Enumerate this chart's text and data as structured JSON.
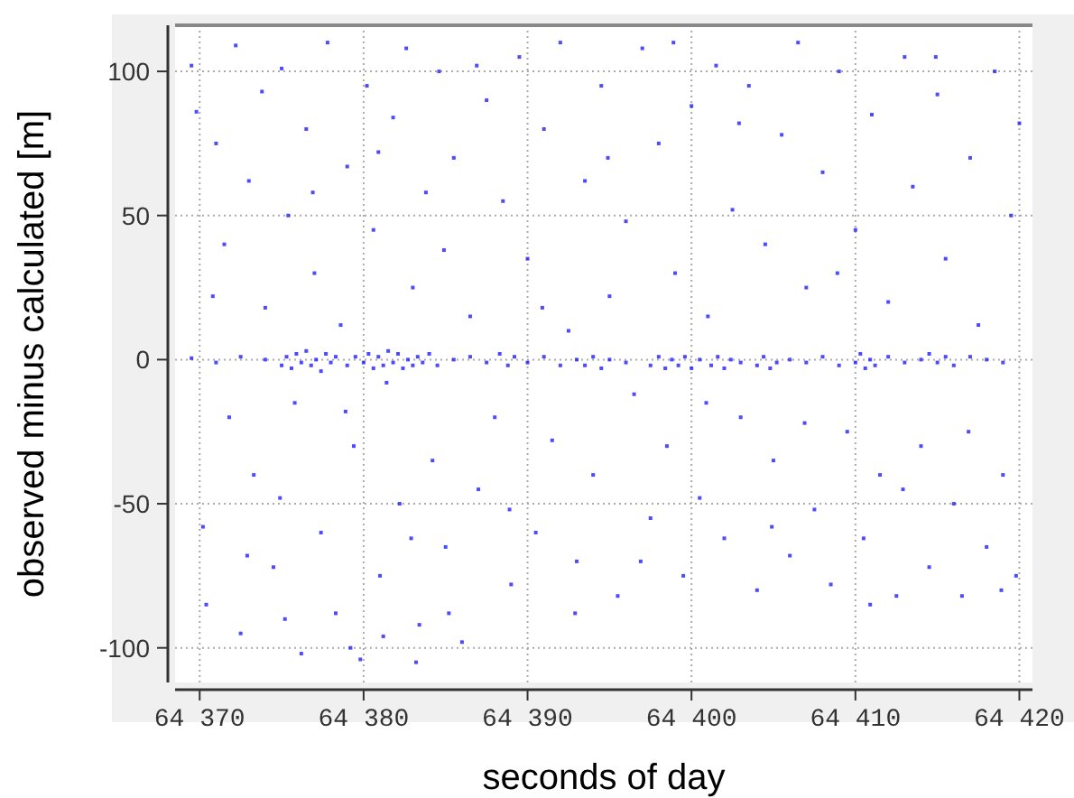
{
  "chart_data": {
    "type": "scatter",
    "xlabel": "seconds of day",
    "ylabel": "observed minus calculated [m]",
    "xlim": [
      64368.5,
      64420.8
    ],
    "ylim": [
      -112,
      116
    ],
    "xticks": [
      {
        "value": 64370,
        "label": "64 370"
      },
      {
        "value": 64380,
        "label": "64 380"
      },
      {
        "value": 64390,
        "label": "64 390"
      },
      {
        "value": 64400,
        "label": "64 400"
      },
      {
        "value": 64410,
        "label": "64 410"
      },
      {
        "value": 64420,
        "label": "64 420"
      }
    ],
    "yticks": [
      -100,
      -50,
      0,
      50,
      100
    ],
    "grid": true,
    "marker": "square",
    "series": [
      {
        "color": "#0000ff",
        "x": [
          64369.5,
          64369.8,
          64370.2,
          64370.4,
          64371,
          64371.5,
          64371.8,
          64372.2,
          64372.5,
          64373,
          64373.3,
          64373.8,
          64374,
          64374.5,
          64375,
          64375.4,
          64375.8,
          64376.2,
          64376.5,
          64377,
          64377.4,
          64377.8,
          64378.3,
          64378.6,
          64379,
          64379.4,
          64379.8,
          64380.2,
          64380.6,
          64381,
          64381.4,
          64381.8,
          64382.2,
          64382.6,
          64383,
          64383.4,
          64383.8,
          64384.2,
          64384.6,
          64385,
          64385.5,
          64386,
          64386.5,
          64387,
          64387.5,
          64388,
          64388.5,
          64389,
          64389.5,
          64390,
          64390.5,
          64391,
          64391.5,
          64392,
          64392.5,
          64393,
          64393.5,
          64394,
          64394.5,
          64395,
          64395.5,
          64396,
          64396.5,
          64397,
          64397.5,
          64398,
          64398.5,
          64399,
          64399.5,
          64400,
          64400.5,
          64401,
          64401.5,
          64402,
          64402.5,
          64403,
          64403.5,
          64404,
          64404.5,
          64405,
          64405.5,
          64406,
          64406.5,
          64407,
          64407.5,
          64408,
          64408.5,
          64409,
          64409.5,
          64410,
          64410.5,
          64411,
          64411.5,
          64412,
          64412.5,
          64413,
          64413.5,
          64414,
          64414.5,
          64415,
          64415.5,
          64416,
          64416.5,
          64417,
          64417.5,
          64418,
          64418.5,
          64419,
          64419.5,
          64419.8,
          64420,
          64370.8,
          64372.9,
          64374.9,
          64376.9,
          64378.9,
          64380.9,
          64382.9,
          64384.9,
          64386.9,
          64388.9,
          64390.9,
          64392.9,
          64394.9,
          64396.9,
          64398.9,
          64400.9,
          64402.9,
          64404.9,
          64406.9,
          64408.9,
          64410.9,
          64412.9,
          64414.9,
          64416.9,
          64418.9,
          64375.2,
          64379.2,
          64383.2,
          64385.2,
          64381.2,
          64369.5,
          64371,
          64372.5,
          64374,
          64375,
          64375.3,
          64375.6,
          64375.9,
          64376.2,
          64376.5,
          64376.8,
          64377.1,
          64377.4,
          64377.7,
          64378,
          64378.3,
          64379,
          64379.5,
          64380,
          64380.3,
          64380.6,
          64380.9,
          64381.2,
          64381.5,
          64381.8,
          64382.1,
          64382.4,
          64382.7,
          64383,
          64383.3,
          64383.6,
          64384,
          64384.5,
          64385.5,
          64386.5,
          64387.5,
          64388.3,
          64388.8,
          64389.2,
          64390,
          64391,
          64392,
          64393,
          64393.5,
          64394,
          64394.5,
          64395,
          64396,
          64397.5,
          64398,
          64398.4,
          64398.8,
          64399.2,
          64399.6,
          64400,
          64400.5,
          64401.2,
          64401.6,
          64402,
          64402.4,
          64403,
          64404,
          64404.4,
          64404.8,
          64405.2,
          64406,
          64407,
          64408,
          64409,
          64410,
          64410.3,
          64410.6,
          64410.9,
          64411.2,
          64412,
          64413,
          64414,
          64414.5,
          64415,
          64415.5,
          64416,
          64417,
          64418,
          64419
        ],
        "values": [
          102,
          86,
          -58,
          -85,
          75,
          40,
          -20,
          109,
          -95,
          62,
          -40,
          93,
          18,
          -72,
          101,
          50,
          -15,
          -102,
          80,
          30,
          -60,
          110,
          -88,
          12,
          67,
          -30,
          -104,
          95,
          45,
          -75,
          -8,
          84,
          -50,
          108,
          25,
          -92,
          58,
          -35,
          100,
          -65,
          70,
          -98,
          15,
          -45,
          90,
          -20,
          55,
          -78,
          105,
          35,
          -60,
          80,
          -28,
          110,
          10,
          -70,
          62,
          -40,
          95,
          22,
          -82,
          48,
          -12,
          108,
          -55,
          75,
          -30,
          30,
          -75,
          88,
          -48,
          15,
          102,
          -62,
          52,
          -20,
          95,
          -80,
          40,
          -35,
          78,
          -68,
          110,
          25,
          -52,
          65,
          -78,
          100,
          -25,
          45,
          -62,
          85,
          -40,
          20,
          -82,
          105,
          60,
          -30,
          -72,
          92,
          35,
          -50,
          -82,
          70,
          12,
          -65,
          100,
          -40,
          50,
          -75,
          82,
          22,
          -68,
          -48,
          58,
          -18,
          72,
          -62,
          38,
          102,
          -52,
          18,
          -88,
          70,
          -70,
          110,
          -15,
          82,
          -58,
          -22,
          30,
          -85,
          -45,
          105,
          -25,
          -80,
          -90,
          -100,
          -105,
          -88,
          -96,
          0.5,
          -1,
          1,
          0,
          -2,
          1,
          -3,
          2,
          -1,
          3,
          -2,
          0,
          -4,
          2,
          -1,
          1,
          -2,
          1,
          -1,
          2,
          -3,
          1,
          -2,
          3,
          -1,
          2,
          -3,
          0,
          -2,
          1,
          -1,
          2,
          -2,
          0,
          1,
          -1,
          2,
          -2,
          1,
          -1,
          1,
          -2,
          0,
          -2,
          1,
          -3,
          0,
          -1,
          -2,
          1,
          -3,
          0,
          -2,
          1,
          -3,
          0,
          -2,
          1,
          -3,
          0,
          -1,
          -2,
          1,
          -3,
          -1,
          0,
          -1,
          1,
          -2,
          -1,
          2,
          -3,
          0,
          -2,
          1,
          -1,
          0,
          2,
          -1,
          1,
          -2,
          1,
          0,
          -1
        ]
      }
    ]
  }
}
